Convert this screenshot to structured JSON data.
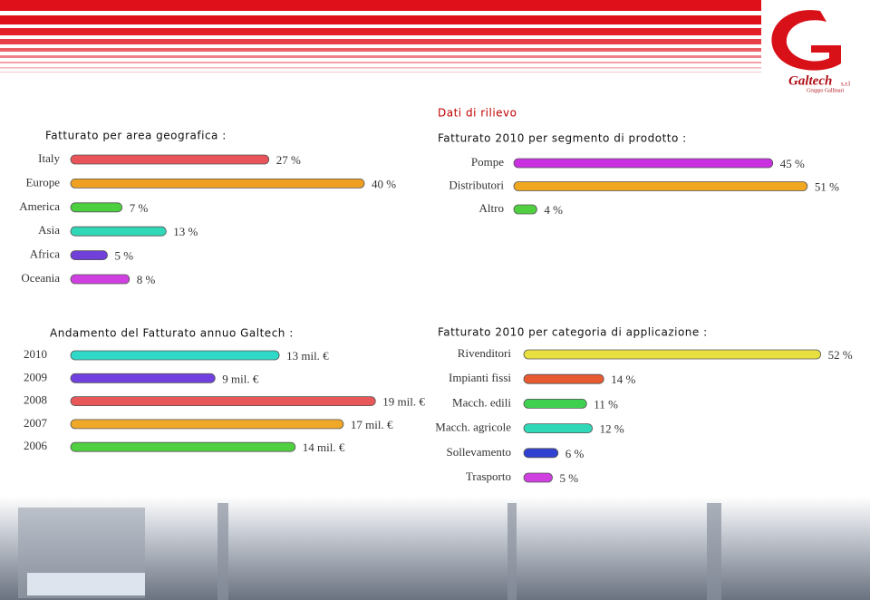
{
  "page": {
    "section_title": "Dati di rilievo",
    "logo": {
      "name": "Galtech",
      "suffix": "s.r.l",
      "group": "Gruppo Gallinari"
    }
  },
  "chart_data": [
    {
      "type": "bar",
      "orientation": "horizontal",
      "title": "Fatturato per area geografica :",
      "categories": [
        "Italy",
        "Europe",
        "America",
        "Asia",
        "Africa",
        "Oceania"
      ],
      "values": [
        27,
        40,
        7,
        13,
        5,
        8
      ],
      "value_labels": [
        "27 %",
        "40 %",
        "7 %",
        "13 %",
        "5 %",
        "8 %"
      ],
      "colors": [
        "#e8545a",
        "#f0a020",
        "#4cd040",
        "#30d8b8",
        "#7040d8",
        "#d040e0"
      ]
    },
    {
      "type": "bar",
      "orientation": "horizontal",
      "title": "Fatturato 2010 per segmento di prodotto :",
      "categories": [
        "Pompe",
        "Distributori",
        "Altro"
      ],
      "values": [
        45,
        51,
        4
      ],
      "value_labels": [
        "45 %",
        "51 %",
        "4 %"
      ],
      "colors": [
        "#c830e0",
        "#f0a820",
        "#50d040"
      ]
    },
    {
      "type": "bar",
      "orientation": "horizontal",
      "title": "Andamento del Fatturato annuo Galtech :",
      "categories": [
        "2010",
        "2009",
        "2008",
        "2007",
        "2006"
      ],
      "values": [
        13,
        9,
        19,
        17,
        14
      ],
      "value_labels": [
        "13 mil. €",
        "9 mil. €",
        "19 mil. €",
        "17 mil. €",
        "14 mil. €"
      ],
      "colors": [
        "#30d8c8",
        "#7040e0",
        "#e85858",
        "#f0a828",
        "#50d040"
      ]
    },
    {
      "type": "bar",
      "orientation": "horizontal",
      "title": "Fatturato 2010 per categoria di applicazione :",
      "categories": [
        "Rivenditori",
        "Impianti fissi",
        "Macch. edili",
        "Macch. agricole",
        "Sollevamento",
        "Trasporto"
      ],
      "values": [
        52,
        14,
        11,
        12,
        6,
        5
      ],
      "value_labels": [
        "52 %",
        "14 %",
        "11 %",
        "12 %",
        "6 %",
        "5 %"
      ],
      "colors": [
        "#e8e040",
        "#e85a30",
        "#40d050",
        "#30d8b8",
        "#3040d0",
        "#d040e0"
      ]
    }
  ]
}
